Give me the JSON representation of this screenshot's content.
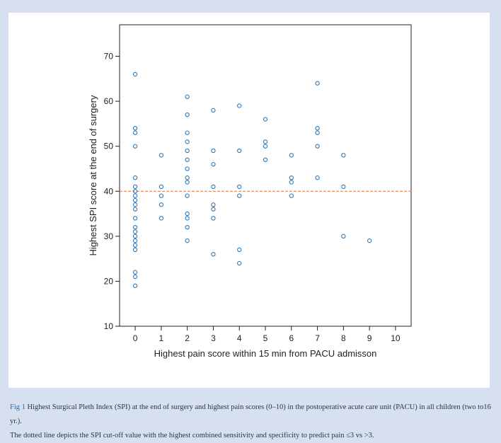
{
  "chart_data": {
    "type": "scatter",
    "xlabel": "Highest pain score within 15 min from PACU admisson",
    "ylabel": "Highest SPI score at the end of surgery",
    "xlim": [
      -0.6,
      10.6
    ],
    "ylim": [
      10,
      77
    ],
    "x_ticks": [
      0,
      1,
      2,
      3,
      4,
      5,
      6,
      7,
      8,
      9,
      10
    ],
    "y_ticks": [
      10,
      20,
      30,
      40,
      50,
      60,
      70
    ],
    "grid": false,
    "marker_color": "#2a77b8",
    "reference_line": {
      "y": 40,
      "color": "#d9773f",
      "style": "dashed"
    },
    "points": [
      {
        "x": 0,
        "y": 66
      },
      {
        "x": 0,
        "y": 54
      },
      {
        "x": 0,
        "y": 53
      },
      {
        "x": 0,
        "y": 50
      },
      {
        "x": 0,
        "y": 43
      },
      {
        "x": 0,
        "y": 41
      },
      {
        "x": 0,
        "y": 40
      },
      {
        "x": 0,
        "y": 39
      },
      {
        "x": 0,
        "y": 38
      },
      {
        "x": 0,
        "y": 37
      },
      {
        "x": 0,
        "y": 36
      },
      {
        "x": 0,
        "y": 34
      },
      {
        "x": 0,
        "y": 32
      },
      {
        "x": 0,
        "y": 31
      },
      {
        "x": 0,
        "y": 30
      },
      {
        "x": 0,
        "y": 29
      },
      {
        "x": 0,
        "y": 28
      },
      {
        "x": 0,
        "y": 27
      },
      {
        "x": 0,
        "y": 22
      },
      {
        "x": 0,
        "y": 21
      },
      {
        "x": 0,
        "y": 19
      },
      {
        "x": 1,
        "y": 48
      },
      {
        "x": 1,
        "y": 41
      },
      {
        "x": 1,
        "y": 39
      },
      {
        "x": 1,
        "y": 37
      },
      {
        "x": 1,
        "y": 34
      },
      {
        "x": 2,
        "y": 61
      },
      {
        "x": 2,
        "y": 57
      },
      {
        "x": 2,
        "y": 53
      },
      {
        "x": 2,
        "y": 51
      },
      {
        "x": 2,
        "y": 49
      },
      {
        "x": 2,
        "y": 47
      },
      {
        "x": 2,
        "y": 45
      },
      {
        "x": 2,
        "y": 43
      },
      {
        "x": 2,
        "y": 42
      },
      {
        "x": 2,
        "y": 39
      },
      {
        "x": 2,
        "y": 35
      },
      {
        "x": 2,
        "y": 34
      },
      {
        "x": 2,
        "y": 32
      },
      {
        "x": 2,
        "y": 29
      },
      {
        "x": 3,
        "y": 58
      },
      {
        "x": 3,
        "y": 49
      },
      {
        "x": 3,
        "y": 46
      },
      {
        "x": 3,
        "y": 41
      },
      {
        "x": 3,
        "y": 37
      },
      {
        "x": 3,
        "y": 36
      },
      {
        "x": 3,
        "y": 34
      },
      {
        "x": 3,
        "y": 26
      },
      {
        "x": 4,
        "y": 59
      },
      {
        "x": 4,
        "y": 49
      },
      {
        "x": 4,
        "y": 41
      },
      {
        "x": 4,
        "y": 39
      },
      {
        "x": 4,
        "y": 27
      },
      {
        "x": 4,
        "y": 24
      },
      {
        "x": 5,
        "y": 56
      },
      {
        "x": 5,
        "y": 51
      },
      {
        "x": 5,
        "y": 50
      },
      {
        "x": 5,
        "y": 47
      },
      {
        "x": 6,
        "y": 48
      },
      {
        "x": 6,
        "y": 43
      },
      {
        "x": 6,
        "y": 42
      },
      {
        "x": 6,
        "y": 39
      },
      {
        "x": 7,
        "y": 64
      },
      {
        "x": 7,
        "y": 54
      },
      {
        "x": 7,
        "y": 53
      },
      {
        "x": 7,
        "y": 50
      },
      {
        "x": 7,
        "y": 43
      },
      {
        "x": 8,
        "y": 48
      },
      {
        "x": 8,
        "y": 41
      },
      {
        "x": 8,
        "y": 30
      },
      {
        "x": 9,
        "y": 29
      }
    ]
  },
  "caption": {
    "label": "Fig 1",
    "line1": "Highest Surgical Pleth Index (SPI) at the end of surgery and highest pain scores (0–10) in the postoperative acute care unit (PACU) in all children (two to16 yr.).",
    "line2": "The dotted line depicts the SPI cut-off value with the highest combined sensitivity and specificity to predict pain ≤3 vs >3."
  }
}
